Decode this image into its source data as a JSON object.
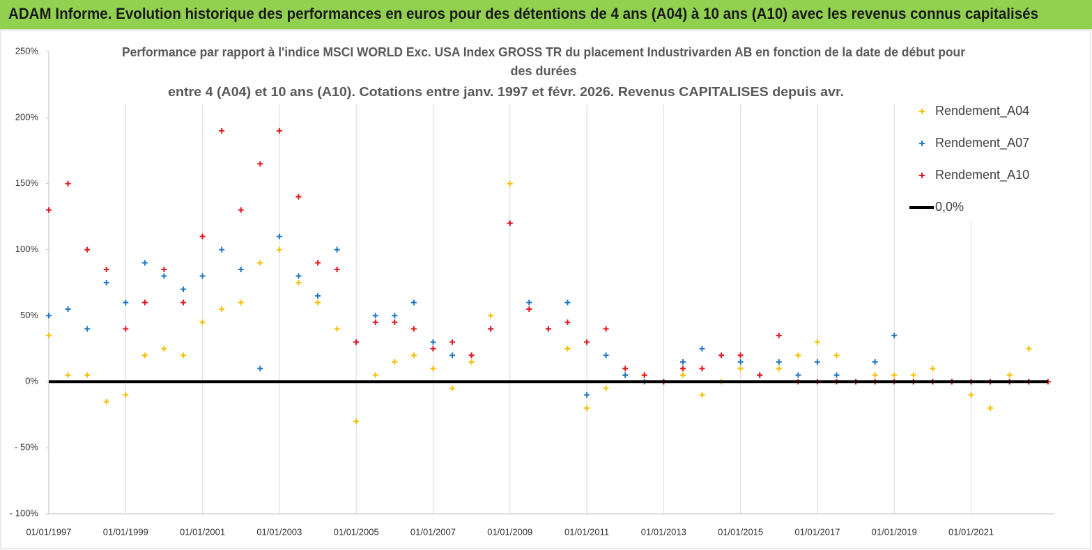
{
  "header": {
    "title": "ADAM Informe. Evolution historique des performances en euros pour des détentions de 4 ans (A04) à 10 ans (A10) avec les revenus connus capitalisés"
  },
  "chart_data": {
    "type": "scatter",
    "title": [
      "Performance par rapport à l'indice MSCI WORLD Exc. USA Index GROSS TR  du placement Industrivarden AB en fonction de la date de début pour",
      "des durées",
      "entre 4 (A04) et 10 ans (A10). Cotations entre janv. 1997 et févr. 2026. Revenus CAPITALISES depuis avr."
    ],
    "x": [
      "01/01/1997",
      "01/07/1997",
      "01/01/1998",
      "01/07/1998",
      "01/01/1999",
      "01/07/1999",
      "01/01/2000",
      "01/07/2000",
      "01/01/2001",
      "01/07/2001",
      "01/01/2002",
      "01/07/2002",
      "01/01/2003",
      "01/07/2003",
      "01/01/2004",
      "01/07/2004",
      "01/01/2005",
      "01/07/2005",
      "01/01/2006",
      "01/07/2006",
      "01/01/2007",
      "01/07/2007",
      "01/01/2008",
      "01/07/2008",
      "01/01/2009",
      "01/07/2009",
      "01/01/2010",
      "01/07/2010",
      "01/01/2011",
      "01/07/2011",
      "01/01/2012",
      "01/07/2012",
      "01/01/2013",
      "01/07/2013",
      "01/01/2014",
      "01/07/2014",
      "01/01/2015",
      "01/07/2015",
      "01/01/2016",
      "01/07/2016",
      "01/01/2017",
      "01/07/2017",
      "01/01/2018",
      "01/07/2018",
      "01/01/2019",
      "01/07/2019",
      "01/01/2020",
      "01/07/2020",
      "01/01/2021",
      "01/07/2021",
      "01/01/2022",
      "01/07/2022",
      "01/01/2023"
    ],
    "series": [
      {
        "name": "Rendement_A04",
        "color": "#f5c000",
        "values": [
          35,
          5,
          5,
          -15,
          -10,
          20,
          25,
          20,
          45,
          55,
          60,
          90,
          100,
          75,
          60,
          40,
          -30,
          5,
          15,
          20,
          10,
          -5,
          15,
          50,
          150,
          60,
          40,
          25,
          -20,
          -5,
          5,
          5,
          0,
          5,
          -10,
          0,
          10,
          5,
          10,
          20,
          30,
          20,
          0,
          5,
          5,
          5,
          10,
          0,
          -10,
          -20,
          5,
          25,
          null
        ]
      },
      {
        "name": "Rendement_A07",
        "color": "#1f77c4",
        "values": [
          50,
          55,
          40,
          75,
          60,
          90,
          80,
          70,
          80,
          100,
          85,
          10,
          110,
          80,
          65,
          100,
          30,
          50,
          50,
          60,
          30,
          20,
          20,
          40,
          120,
          60,
          40,
          60,
          -10,
          20,
          5,
          0,
          0,
          15,
          25,
          20,
          15,
          5,
          15,
          5,
          15,
          5,
          0,
          15,
          35,
          0,
          0,
          0,
          0,
          0,
          0,
          0,
          0
        ]
      },
      {
        "name": "Rendement_A10",
        "color": "#e8141c",
        "values": [
          130,
          150,
          100,
          85,
          40,
          60,
          85,
          60,
          110,
          190,
          130,
          165,
          190,
          140,
          90,
          85,
          30,
          45,
          45,
          40,
          25,
          30,
          20,
          40,
          120,
          55,
          40,
          45,
          30,
          40,
          10,
          5,
          0,
          10,
          10,
          20,
          20,
          5,
          35,
          0,
          0,
          0,
          0,
          0,
          0,
          0,
          0,
          0,
          0,
          0,
          0,
          0,
          0
        ]
      },
      {
        "name": "0,0%",
        "color": "#000000",
        "type": "line",
        "x": [
          "01/01/1997",
          "01/01/2023"
        ],
        "values": [
          0,
          0
        ]
      }
    ],
    "xlim": [
      "01/01/1997",
      "01/03/2023"
    ],
    "xticks": [
      "01/01/1997",
      "01/01/1999",
      "01/01/2001",
      "01/01/2003",
      "01/01/2005",
      "01/01/2007",
      "01/01/2009",
      "01/01/2011",
      "01/01/2013",
      "01/01/2015",
      "01/01/2017",
      "01/01/2019",
      "01/01/2021"
    ],
    "ylim": [
      -100,
      250
    ],
    "yticks": [
      {
        "value": -100,
        "label": "- 100%"
      },
      {
        "value": -50,
        "label": "- 50%"
      },
      {
        "value": 0,
        "label": "0%"
      },
      {
        "value": 50,
        "label": "50%"
      },
      {
        "value": 100,
        "label": "100%"
      },
      {
        "value": 150,
        "label": "150%"
      },
      {
        "value": 200,
        "label": "200%"
      },
      {
        "value": 250,
        "label": "250%"
      }
    ],
    "grid": true,
    "legend": "upper right"
  }
}
